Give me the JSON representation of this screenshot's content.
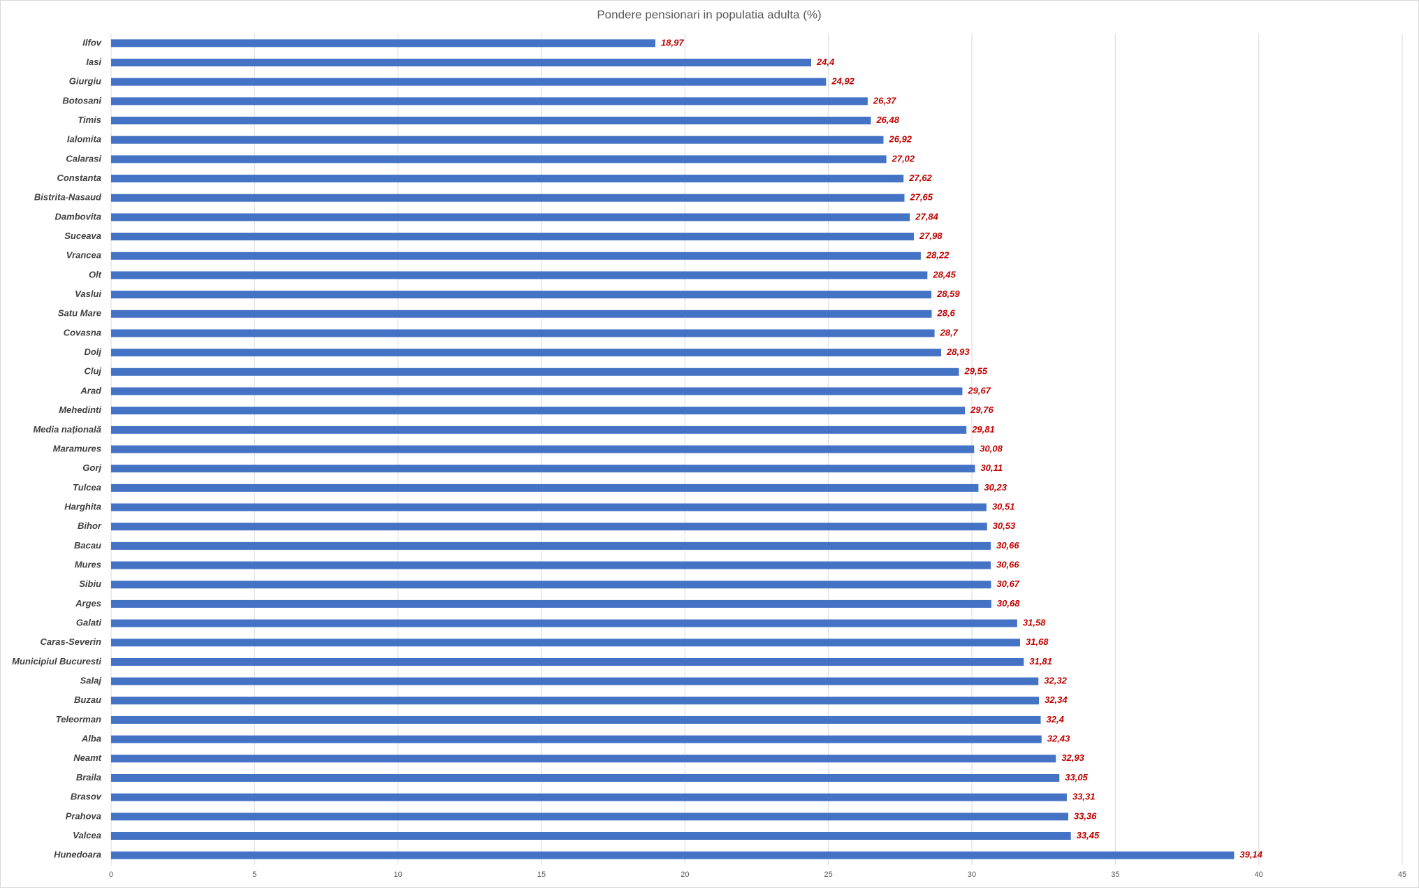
{
  "chart_data": {
    "type": "bar",
    "orientation": "horizontal",
    "title": "Pondere pensionari in populatia adulta (%)",
    "categories": [
      "Ilfov",
      "Iasi",
      "Giurgiu",
      "Botosani",
      "Timis",
      "Ialomita",
      "Calarasi",
      "Constanta",
      "Bistrita-Nasaud",
      "Dambovita",
      "Suceava",
      "Vrancea",
      "Olt",
      "Vaslui",
      "Satu Mare",
      "Covasna",
      "Dolj",
      "Cluj",
      "Arad",
      "Mehedinti",
      "Media națională",
      "Maramures",
      "Gorj",
      "Tulcea",
      "Harghita",
      "Bihor",
      "Bacau",
      "Mures",
      "Sibiu",
      "Arges",
      "Galati",
      "Caras-Severin",
      "Municipiul Bucuresti",
      "Salaj",
      "Buzau",
      "Teleorman",
      "Alba",
      "Neamt",
      "Braila",
      "Brasov",
      "Prahova",
      "Valcea",
      "Hunedoara"
    ],
    "values": [
      18.97,
      24.4,
      24.92,
      26.37,
      26.48,
      26.92,
      27.02,
      27.62,
      27.65,
      27.84,
      27.98,
      28.22,
      28.45,
      28.59,
      28.6,
      28.7,
      28.93,
      29.55,
      29.67,
      29.76,
      29.81,
      30.08,
      30.11,
      30.23,
      30.51,
      30.53,
      30.66,
      30.66,
      30.67,
      30.68,
      31.58,
      31.68,
      31.81,
      32.32,
      32.34,
      32.4,
      32.43,
      32.93,
      33.05,
      33.31,
      33.36,
      33.45,
      39.14
    ],
    "value_labels": [
      "18,97",
      "24,4",
      "24,92",
      "26,37",
      "26,48",
      "26,92",
      "27,02",
      "27,62",
      "27,65",
      "27,84",
      "27,98",
      "28,22",
      "28,45",
      "28,59",
      "28,6",
      "28,7",
      "28,93",
      "29,55",
      "29,67",
      "29,76",
      "29,81",
      "30,08",
      "30,11",
      "30,23",
      "30,51",
      "30,53",
      "30,66",
      "30,66",
      "30,67",
      "30,68",
      "31,58",
      "31,68",
      "31,81",
      "32,32",
      "32,34",
      "32,4",
      "32,43",
      "32,93",
      "33,05",
      "33,31",
      "33,36",
      "33,45",
      "39,14"
    ],
    "color": "#4472c4",
    "label_color": "#c00000",
    "xlim": [
      0,
      45
    ],
    "xticks": [
      0,
      5,
      10,
      15,
      20,
      25,
      30,
      35,
      40,
      45
    ],
    "grid": true
  }
}
